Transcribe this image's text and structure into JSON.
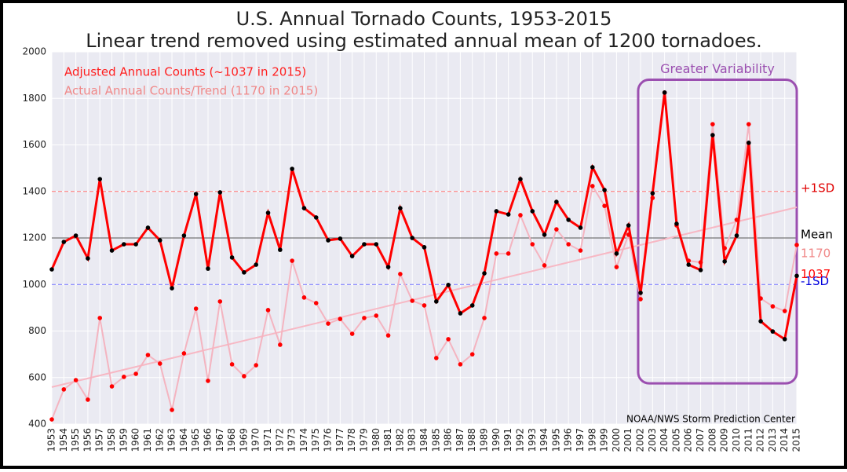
{
  "chart_data": {
    "type": "line",
    "title": "U.S. Annual Tornado Counts, 1953-2015",
    "subtitle": "Linear trend removed using estimated annual mean of 1200 tornadoes.",
    "source": "NOAA/NWS Storm Prediction Center",
    "x": [
      1953,
      1954,
      1955,
      1956,
      1957,
      1958,
      1959,
      1960,
      1961,
      1962,
      1963,
      1964,
      1965,
      1966,
      1967,
      1968,
      1969,
      1970,
      1971,
      1972,
      1973,
      1974,
      1975,
      1976,
      1977,
      1978,
      1979,
      1980,
      1981,
      1982,
      1983,
      1984,
      1985,
      1986,
      1987,
      1988,
      1989,
      1990,
      1991,
      1992,
      1993,
      1994,
      1995,
      1996,
      1997,
      1998,
      1999,
      2000,
      2001,
      2002,
      2003,
      2004,
      2005,
      2006,
      2007,
      2008,
      2009,
      2010,
      2011,
      2012,
      2013,
      2014,
      2015
    ],
    "series": [
      {
        "name": "Adjusted Annual Counts (~1037 in 2015)",
        "color": "#ff0000",
        "marker_color": "#000000",
        "legend_color": "#ff2020",
        "values": [
          1065,
          1183,
          1210,
          1112,
          1453,
          1146,
          1173,
          1173,
          1244,
          1190,
          984,
          1210,
          1389,
          1068,
          1396,
          1116,
          1052,
          1085,
          1308,
          1149,
          1497,
          1328,
          1288,
          1190,
          1197,
          1122,
          1173,
          1173,
          1075,
          1328,
          1200,
          1160,
          927,
          998,
          876,
          910,
          1048,
          1315,
          1301,
          1453,
          1315,
          1214,
          1355,
          1278,
          1244,
          1504,
          1406,
          1133,
          1254,
          964,
          1392,
          1825,
          1261,
          1085,
          1062,
          1642,
          1099,
          1210,
          1609,
          842,
          798,
          765,
          1037
        ]
      },
      {
        "name": "Actual Annual Counts/Trend (1170 in 2015)",
        "color": "#f4b4c0",
        "marker_color": "#ff0000",
        "legend_color": "#f08888",
        "values": [
          420,
          549,
          589,
          505,
          856,
          562,
          603,
          616,
          697,
          660,
          461,
          704,
          896,
          586,
          927,
          657,
          606,
          653,
          890,
          741,
          1102,
          944,
          920,
          832,
          852,
          788,
          856,
          866,
          781,
          1045,
          930,
          910,
          684,
          765,
          657,
          700,
          856,
          1133,
          1133,
          1298,
          1173,
          1082,
          1237,
          1173,
          1146,
          1423,
          1338,
          1075,
          1214,
          937,
          1372,
          1825,
          1254,
          1102,
          1095,
          1689,
          1156,
          1278,
          1689,
          940,
          906,
          886,
          1170
        ]
      }
    ],
    "trend": {
      "x": [
        1953,
        2015
      ],
      "values": [
        559,
        1332
      ],
      "color": "#f7b8c4"
    },
    "reference_lines": [
      {
        "value": 1400,
        "label": "+1SD",
        "color": "#ff7070",
        "label_color": "#e00000",
        "dashed": true
      },
      {
        "value": 1200,
        "label": "Mean",
        "color": "#555555",
        "label_color": "#000000",
        "dashed": false
      },
      {
        "value": 1000,
        "label": "-1SD",
        "color": "#7070ff",
        "label_color": "#0000dd",
        "dashed": true
      }
    ],
    "highlight": {
      "label": "Greater Variability",
      "color": "#9b4fb0",
      "x": [
        2001.8,
        2015
      ],
      "y": [
        575,
        1880
      ]
    },
    "xlim": [
      1953,
      2015
    ],
    "ylim": [
      400,
      2000
    ],
    "yticks": [
      400,
      600,
      800,
      1000,
      1200,
      1400,
      1600,
      1800,
      2000
    ],
    "xticks": [
      1953,
      1954,
      1955,
      1956,
      1957,
      1958,
      1959,
      1960,
      1961,
      1962,
      1963,
      1964,
      1965,
      1966,
      1967,
      1968,
      1969,
      1970,
      1971,
      1972,
      1973,
      1974,
      1975,
      1976,
      1977,
      1978,
      1979,
      1980,
      1981,
      1982,
      1983,
      1984,
      1985,
      1986,
      1987,
      1988,
      1989,
      1990,
      1991,
      1992,
      1993,
      1994,
      1995,
      1996,
      1997,
      1998,
      1999,
      2000,
      2001,
      2002,
      2003,
      2004,
      2005,
      2006,
      2007,
      2008,
      2009,
      2010,
      2011,
      2012,
      2013,
      2014,
      2015
    ],
    "grid": true
  }
}
